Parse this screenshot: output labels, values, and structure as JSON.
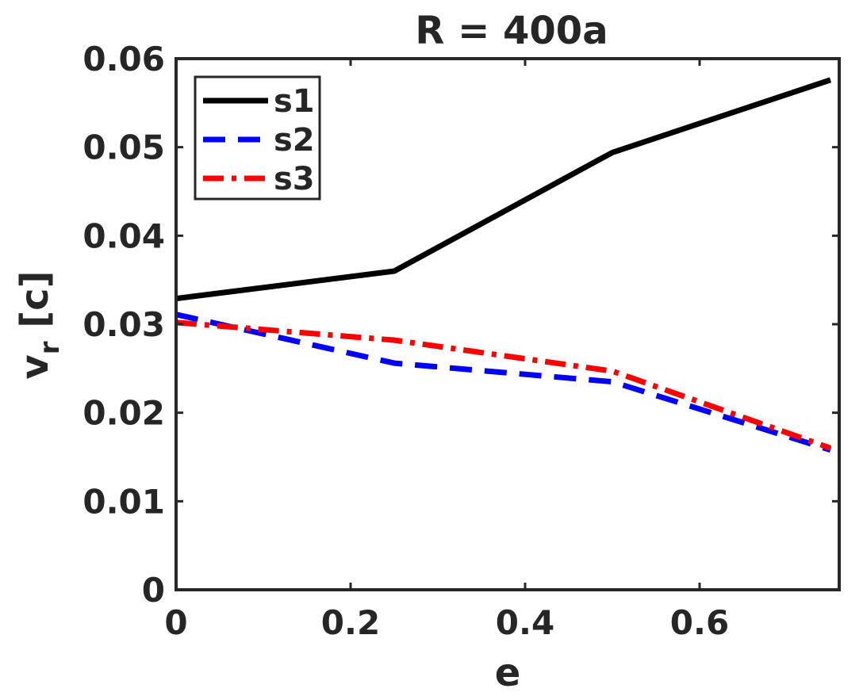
{
  "chart_data": {
    "type": "line",
    "title": "R = 400a",
    "xlabel": "e",
    "ylabel": {
      "main": "v",
      "subscript": "r",
      "unit": " [c]"
    },
    "xlim": [
      0,
      0.76
    ],
    "ylim": [
      0,
      0.06
    ],
    "xticks": [
      0,
      0.2,
      0.4,
      0.6
    ],
    "xtick_labels": [
      "0",
      "0.2",
      "0.4",
      "0.6"
    ],
    "yticks": [
      0,
      0.01,
      0.02,
      0.03,
      0.04,
      0.05,
      0.06
    ],
    "ytick_labels": [
      "0",
      "0.01",
      "0.02",
      "0.03",
      "0.04",
      "0.05",
      "0.06"
    ],
    "grid": false,
    "legend_position": "top-left",
    "x": [
      0,
      0.25,
      0.5,
      0.75
    ],
    "series": [
      {
        "name": "s1",
        "values": [
          0.0329,
          0.036,
          0.0494,
          0.0576
        ],
        "color": "#000000",
        "dash": "solid"
      },
      {
        "name": "s2",
        "values": [
          0.0311,
          0.0256,
          0.0235,
          0.0158
        ],
        "color": "#0000ff",
        "dash": "dashed"
      },
      {
        "name": "s3",
        "values": [
          0.0302,
          0.0282,
          0.0247,
          0.016
        ],
        "color": "#ff0000",
        "dash": "dashdot"
      }
    ]
  }
}
